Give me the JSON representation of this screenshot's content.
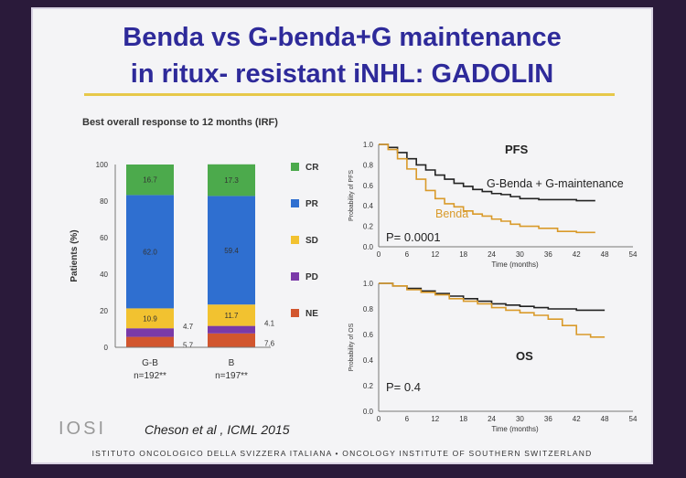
{
  "slide": {
    "title_line1": "Benda vs G-benda+G maintenance",
    "title_line2": "in ritux- resistant iNHL: GADOLIN",
    "citation": "Cheson et al , ICML 2015",
    "logo_text": "IOSI",
    "footer": "ISTITUTO ONCOLOGICO DELLA SVIZZERA ITALIANA  •  ONCOLOGY INSTITUTE OF SOUTHERN SWITZERLAND",
    "colors": {
      "title": "#2e2a9a",
      "rule": "#e6c84a",
      "cr": "#4caa4c",
      "pr": "#2f6fd0",
      "sd": "#f2c230",
      "pd": "#7a3aa8",
      "ne": "#d2562e",
      "g_benda": "#222222",
      "benda": "#d99a2a"
    }
  },
  "chart_data": [
    {
      "type": "bar",
      "stacked": true,
      "title": "Best overall response to 12 months (IRF)",
      "ylabel": "Patients (%)",
      "ylim": [
        0,
        100
      ],
      "yticks": [
        "0",
        "20",
        "40",
        "60",
        "80",
        "100"
      ],
      "categories": [
        {
          "name": "G-B",
          "sub": "n=192**"
        },
        {
          "name": "B",
          "sub": "n=197**"
        }
      ],
      "series": [
        {
          "name": "NE",
          "color": "#d2562e",
          "values": [
            5.7,
            7.6
          ],
          "labels": [
            "5.7",
            "7.6"
          ]
        },
        {
          "name": "PD",
          "color": "#7a3aa8",
          "values": [
            4.7,
            4.1
          ],
          "labels": [
            "4.7",
            "4.1"
          ]
        },
        {
          "name": "SD",
          "color": "#f2c230",
          "values": [
            10.9,
            11.7
          ],
          "labels": [
            "10.9",
            "11.7"
          ]
        },
        {
          "name": "PR",
          "color": "#2f6fd0",
          "values": [
            62.0,
            59.4
          ],
          "labels": [
            "62.0",
            "59.4"
          ]
        },
        {
          "name": "CR",
          "color": "#4caa4c",
          "values": [
            16.7,
            17.3
          ],
          "labels": [
            "16.7",
            "17.3"
          ]
        }
      ],
      "legend": [
        "CR",
        "PR",
        "SD",
        "PD",
        "NE"
      ]
    },
    {
      "type": "line",
      "step": true,
      "title": "PFS",
      "ylabel": "Probability of PFS",
      "xlabel": "Time (months)",
      "xlim": [
        0,
        54
      ],
      "ylim": [
        0,
        1.0
      ],
      "xticks": [
        "0",
        "6",
        "12",
        "18",
        "24",
        "30",
        "36",
        "42",
        "48",
        "54"
      ],
      "yticks": [
        "0.0",
        "0.2",
        "0.4",
        "0.6",
        "0.8",
        "1.0"
      ],
      "annotation": "P= 0.0001",
      "series": [
        {
          "name": "G-Benda + G-maintenance",
          "color": "#222222",
          "x": [
            0,
            2,
            4,
            6,
            8,
            10,
            12,
            14,
            16,
            18,
            20,
            22,
            24,
            26,
            28,
            30,
            34,
            38,
            42,
            46
          ],
          "y": [
            1.0,
            0.97,
            0.92,
            0.86,
            0.8,
            0.75,
            0.7,
            0.66,
            0.62,
            0.59,
            0.56,
            0.54,
            0.52,
            0.51,
            0.49,
            0.47,
            0.46,
            0.46,
            0.45,
            0.45
          ]
        },
        {
          "name": "Benda",
          "color": "#d99a2a",
          "x": [
            0,
            2,
            4,
            6,
            8,
            10,
            12,
            14,
            16,
            18,
            20,
            22,
            24,
            26,
            28,
            30,
            34,
            38,
            42,
            46
          ],
          "y": [
            1.0,
            0.95,
            0.86,
            0.76,
            0.66,
            0.55,
            0.47,
            0.42,
            0.39,
            0.35,
            0.32,
            0.3,
            0.27,
            0.25,
            0.22,
            0.2,
            0.18,
            0.15,
            0.14,
            0.14
          ]
        }
      ]
    },
    {
      "type": "line",
      "step": true,
      "title": "OS",
      "ylabel": "Probability of OS",
      "xlabel": "Time (months)",
      "xlim": [
        0,
        54
      ],
      "ylim": [
        0,
        1.0
      ],
      "xticks": [
        "0",
        "6",
        "12",
        "18",
        "24",
        "30",
        "36",
        "42",
        "48",
        "54"
      ],
      "yticks": [
        "0.0",
        "0.2",
        "0.4",
        "0.6",
        "0.8",
        "1.0"
      ],
      "annotation": "P= 0.4",
      "series": [
        {
          "color": "#222222",
          "x": [
            0,
            3,
            6,
            9,
            12,
            15,
            18,
            21,
            24,
            27,
            30,
            33,
            36,
            39,
            42,
            45,
            48
          ],
          "y": [
            1.0,
            0.98,
            0.96,
            0.94,
            0.92,
            0.9,
            0.88,
            0.86,
            0.84,
            0.83,
            0.82,
            0.81,
            0.8,
            0.8,
            0.79,
            0.79,
            0.79
          ]
        },
        {
          "color": "#d99a2a",
          "x": [
            0,
            3,
            6,
            9,
            12,
            15,
            18,
            21,
            24,
            27,
            30,
            33,
            36,
            39,
            42,
            45,
            48
          ],
          "y": [
            1.0,
            0.98,
            0.95,
            0.93,
            0.91,
            0.88,
            0.86,
            0.84,
            0.81,
            0.79,
            0.77,
            0.75,
            0.72,
            0.67,
            0.6,
            0.58,
            0.58
          ]
        }
      ]
    }
  ]
}
